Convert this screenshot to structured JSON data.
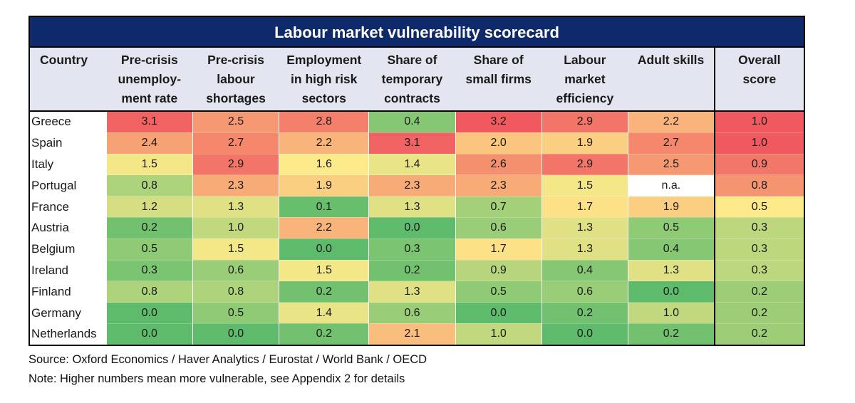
{
  "title": "Labour market vulnerability scorecard",
  "columns": [
    {
      "label": "Country"
    },
    {
      "label": "Pre-crisis unemploy-ment rate",
      "lines": [
        "Pre-crisis",
        "unemploy-",
        "ment rate"
      ]
    },
    {
      "label": "Pre-crisis labour shortages",
      "lines": [
        "Pre-crisis",
        "labour",
        "shortages"
      ]
    },
    {
      "label": "Employment in high risk sectors",
      "lines": [
        "Employment",
        "in high risk",
        "sectors"
      ]
    },
    {
      "label": "Share of temporary contracts",
      "lines": [
        "Share of",
        "temporary",
        "contracts"
      ]
    },
    {
      "label": "Share of small firms",
      "lines": [
        "Share of",
        "small firms"
      ]
    },
    {
      "label": "Labour market efficiency",
      "lines": [
        "Labour",
        "market",
        "efficiency"
      ]
    },
    {
      "label": "Adult skills",
      "lines": [
        "Adult skills"
      ]
    },
    {
      "label": "Overall score",
      "lines": [
        "Overall",
        "score"
      ]
    }
  ],
  "rows": [
    {
      "country": "Greece",
      "values": [
        "3.1",
        "2.5",
        "2.8",
        "0.4",
        "3.2",
        "2.9",
        "2.2",
        "1.0"
      ]
    },
    {
      "country": "Spain",
      "values": [
        "2.4",
        "2.7",
        "2.2",
        "3.1",
        "2.0",
        "1.9",
        "2.7",
        "1.0"
      ]
    },
    {
      "country": "Italy",
      "values": [
        "1.5",
        "2.9",
        "1.6",
        "1.4",
        "2.6",
        "2.9",
        "2.5",
        "0.9"
      ]
    },
    {
      "country": "Portugal",
      "values": [
        "0.8",
        "2.3",
        "1.9",
        "2.3",
        "2.3",
        "1.5",
        "n.a.",
        "0.8"
      ]
    },
    {
      "country": "France",
      "values": [
        "1.2",
        "1.3",
        "0.1",
        "1.3",
        "0.7",
        "1.7",
        "1.9",
        "0.5"
      ]
    },
    {
      "country": "Austria",
      "values": [
        "0.2",
        "1.0",
        "2.2",
        "0.0",
        "0.6",
        "1.3",
        "0.5",
        "0.3"
      ]
    },
    {
      "country": "Belgium",
      "values": [
        "0.5",
        "1.5",
        "0.0",
        "0.3",
        "1.7",
        "1.3",
        "0.4",
        "0.3"
      ]
    },
    {
      "country": "Ireland",
      "values": [
        "0.3",
        "0.6",
        "1.5",
        "0.2",
        "0.9",
        "0.4",
        "1.3",
        "0.3"
      ]
    },
    {
      "country": "Finland",
      "values": [
        "0.8",
        "0.8",
        "0.2",
        "1.3",
        "0.5",
        "0.6",
        "0.0",
        "0.2"
      ]
    },
    {
      "country": "Germany",
      "values": [
        "0.0",
        "0.5",
        "1.4",
        "0.6",
        "0.0",
        "0.2",
        "1.0",
        "0.2"
      ]
    },
    {
      "country": "Netherlands",
      "values": [
        "0.0",
        "0.0",
        "0.2",
        "2.1",
        "1.0",
        "0.0",
        "0.2",
        "0.2"
      ]
    }
  ],
  "source": "Source: Oxford Economics / Haver Analytics / Eurostat / World Bank / OECD",
  "note": "Note: Higher numbers mean more vulnerable, see Appendix 2 for details",
  "colors": {
    "title_bar": "#0e2a6b",
    "header_bg": "#e3e6f0",
    "scale_low": "#5dbb6b",
    "scale_mid": "#fdea8a",
    "scale_high": "#f05a5f",
    "not_available": "#ffffff"
  }
}
